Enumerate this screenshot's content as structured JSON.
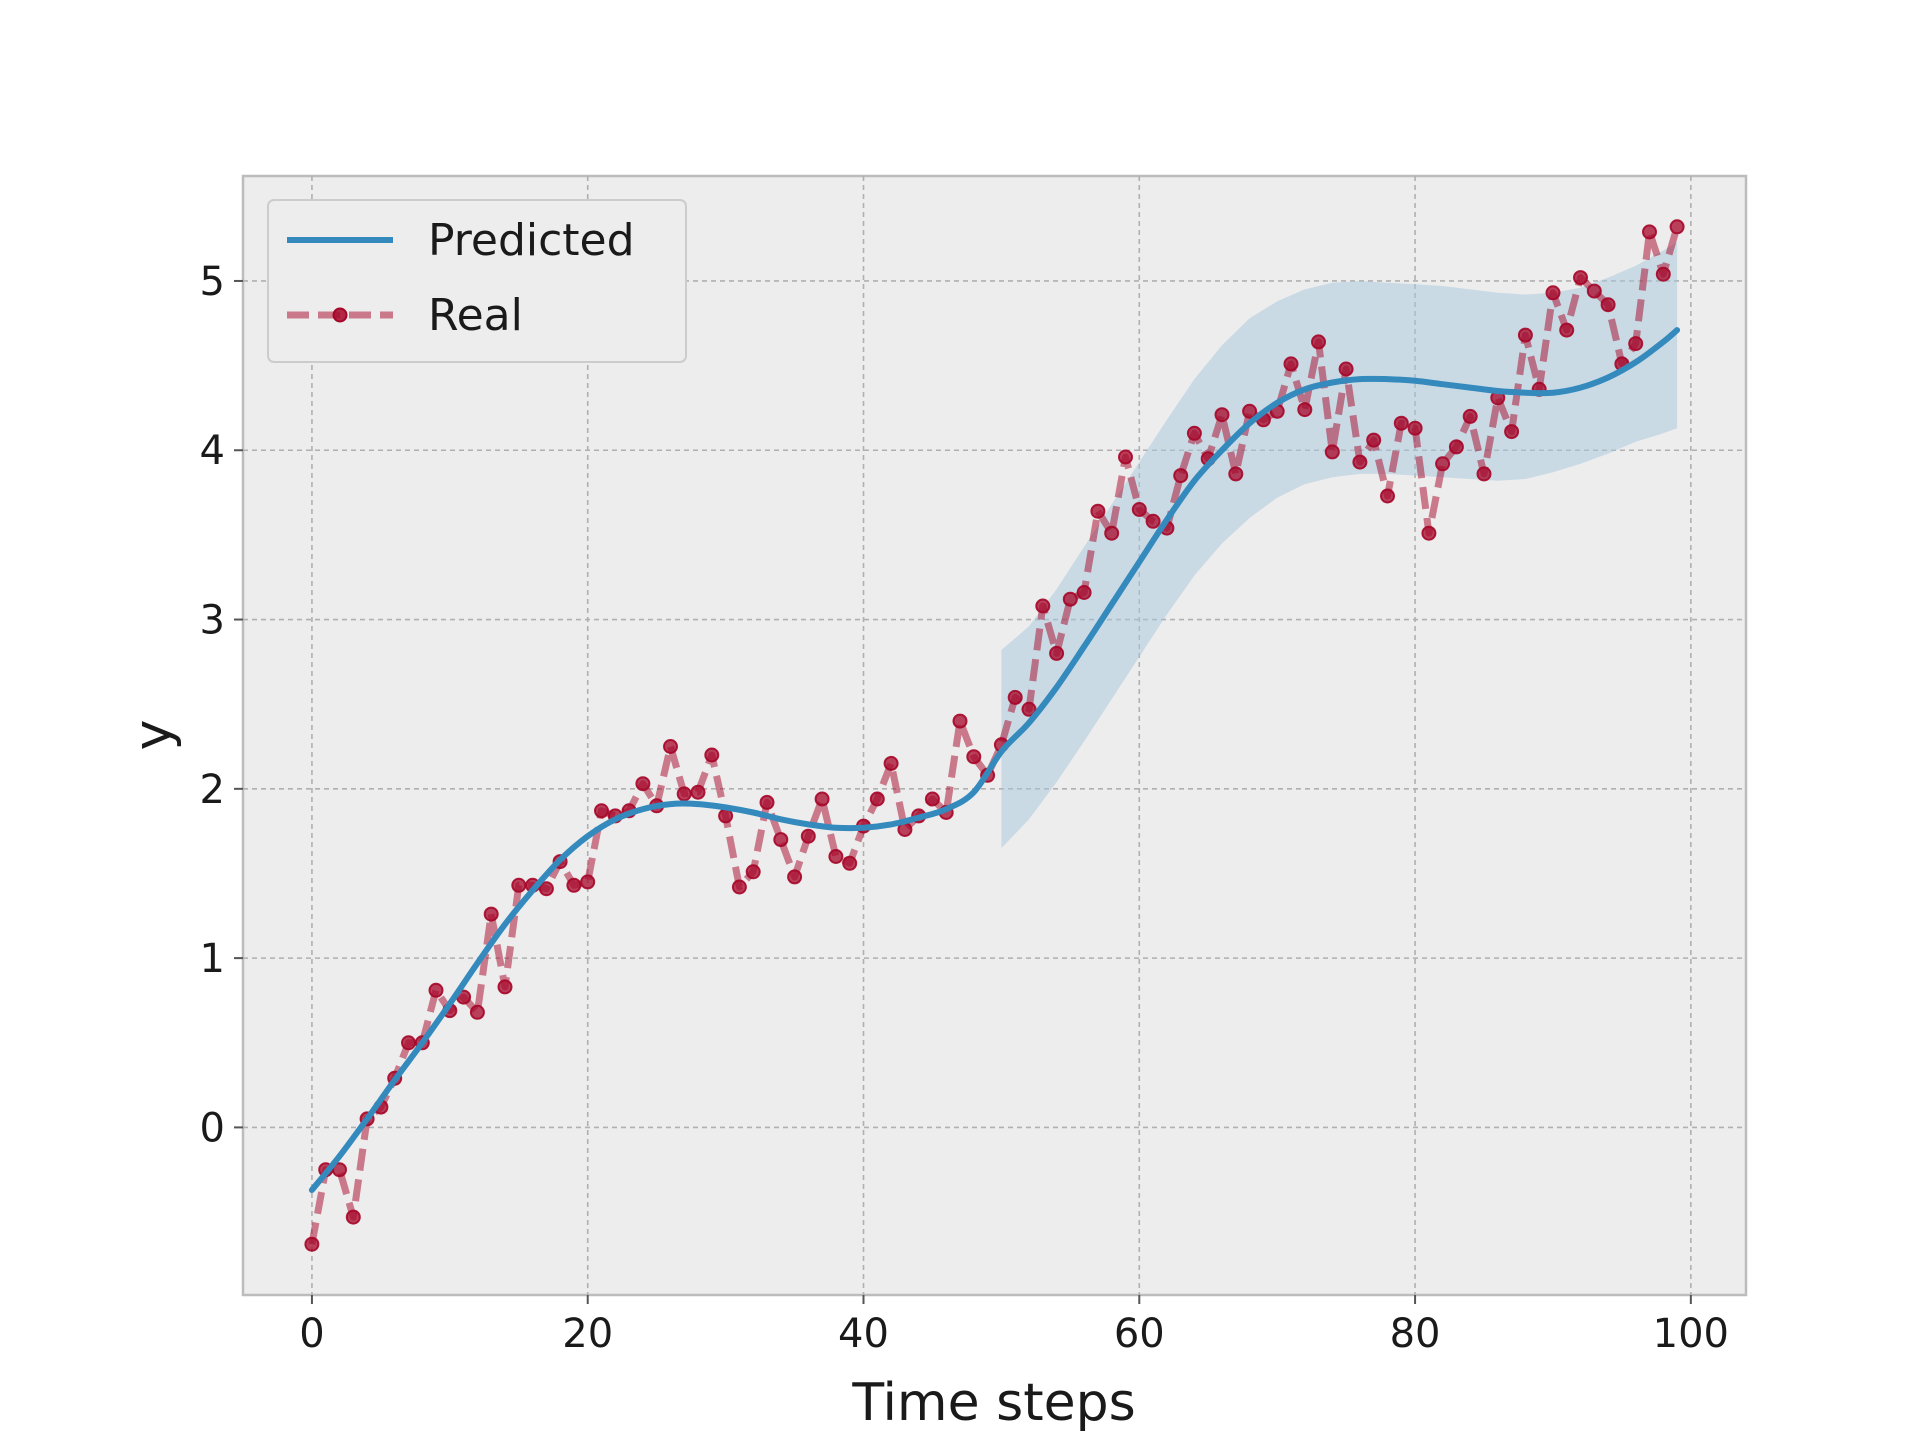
{
  "chart_data": {
    "type": "line",
    "title": "",
    "xlabel": "Time steps",
    "ylabel": "y",
    "xlim": [
      -5,
      104
    ],
    "ylim": [
      -0.99,
      5.62
    ],
    "xticks": [
      0,
      20,
      40,
      60,
      80,
      100
    ],
    "yticks": [
      0,
      1,
      2,
      3,
      4,
      5
    ],
    "grid": true,
    "legend_position": "top-left",
    "legend": [
      {
        "name": "Predicted",
        "style": "solid line"
      },
      {
        "name": "Real",
        "style": "dashed line with circle markers"
      }
    ],
    "series": [
      {
        "name": "Predicted",
        "color": "#348abd",
        "x": [
          0,
          2,
          4,
          6,
          8,
          10,
          12,
          14,
          16,
          18,
          20,
          22,
          24,
          26,
          28,
          30,
          32,
          34,
          36,
          38,
          40,
          42,
          44,
          46,
          48,
          50,
          52,
          54,
          56,
          58,
          60,
          62,
          64,
          66,
          68,
          70,
          72,
          74,
          76,
          78,
          80,
          82,
          84,
          86,
          88,
          90,
          92,
          94,
          96,
          98,
          99
        ],
        "y": [
          -0.37,
          -0.17,
          0.05,
          0.28,
          0.5,
          0.73,
          0.97,
          1.2,
          1.4,
          1.58,
          1.72,
          1.82,
          1.88,
          1.91,
          1.91,
          1.89,
          1.86,
          1.82,
          1.79,
          1.77,
          1.77,
          1.79,
          1.83,
          1.88,
          1.98,
          2.22,
          2.39,
          2.6,
          2.84,
          3.09,
          3.34,
          3.59,
          3.82,
          4.0,
          4.16,
          4.28,
          4.36,
          4.4,
          4.42,
          4.42,
          4.41,
          4.39,
          4.37,
          4.35,
          4.34,
          4.34,
          4.37,
          4.43,
          4.52,
          4.64,
          4.71
        ]
      },
      {
        "name": "Real",
        "color": "#a60628",
        "x": [
          0,
          1,
          2,
          3,
          4,
          5,
          6,
          7,
          8,
          9,
          10,
          11,
          12,
          13,
          14,
          15,
          16,
          17,
          18,
          19,
          20,
          21,
          22,
          23,
          24,
          25,
          26,
          27,
          28,
          29,
          30,
          31,
          32,
          33,
          34,
          35,
          36,
          37,
          38,
          39,
          40,
          41,
          42,
          43,
          44,
          45,
          46,
          47,
          48,
          49,
          50,
          51,
          52,
          53,
          54,
          55,
          56,
          57,
          58,
          59,
          60,
          61,
          62,
          63,
          64,
          65,
          66,
          67,
          68,
          69,
          70,
          71,
          72,
          73,
          74,
          75,
          76,
          77,
          78,
          79,
          80,
          81,
          82,
          83,
          84,
          85,
          86,
          87,
          88,
          89,
          90,
          91,
          92,
          93,
          94,
          95,
          96,
          97,
          98,
          99
        ],
        "y": [
          -0.69,
          -0.25,
          -0.25,
          -0.53,
          0.05,
          0.12,
          0.29,
          0.5,
          0.5,
          0.81,
          0.69,
          0.77,
          0.68,
          1.26,
          0.83,
          1.43,
          1.43,
          1.41,
          1.57,
          1.43,
          1.45,
          1.87,
          1.84,
          1.87,
          2.03,
          1.9,
          2.25,
          1.97,
          1.98,
          2.2,
          1.84,
          1.42,
          1.51,
          1.92,
          1.7,
          1.48,
          1.72,
          1.94,
          1.6,
          1.56,
          1.78,
          1.94,
          2.15,
          1.76,
          1.84,
          1.94,
          1.86,
          2.4,
          2.19,
          2.08,
          2.26,
          2.54,
          2.47,
          3.08,
          2.8,
          3.12,
          3.16,
          3.64,
          3.51,
          3.96,
          3.65,
          3.58,
          3.54,
          3.85,
          4.1,
          3.95,
          4.21,
          3.86,
          4.23,
          4.18,
          4.23,
          4.51,
          4.24,
          4.64,
          3.99,
          4.48,
          3.93,
          4.06,
          3.73,
          4.16,
          4.13,
          3.51,
          3.92,
          4.02,
          4.2,
          3.86,
          4.31,
          4.11,
          4.68,
          4.36,
          4.93,
          4.71,
          5.02,
          4.94,
          4.86,
          4.51,
          4.63,
          5.29,
          5.04,
          5.32
        ]
      }
    ],
    "confidence_band": {
      "color": "#a6c8dd",
      "x": [
        50,
        52,
        54,
        56,
        58,
        60,
        62,
        64,
        66,
        68,
        70,
        72,
        74,
        76,
        78,
        80,
        82,
        84,
        86,
        88,
        90,
        92,
        94,
        96,
        98,
        99
      ],
      "lower": [
        1.65,
        1.82,
        2.04,
        2.28,
        2.53,
        2.78,
        3.03,
        3.26,
        3.45,
        3.6,
        3.72,
        3.8,
        3.84,
        3.86,
        3.86,
        3.85,
        3.84,
        3.83,
        3.82,
        3.83,
        3.87,
        3.92,
        3.98,
        4.05,
        4.1,
        4.13
      ],
      "upper": [
        2.82,
        2.96,
        3.18,
        3.43,
        3.68,
        3.93,
        4.18,
        4.42,
        4.62,
        4.78,
        4.88,
        4.95,
        4.99,
        5.0,
        4.99,
        4.98,
        4.97,
        4.95,
        4.93,
        4.92,
        4.93,
        4.96,
        5.02,
        5.09,
        5.18,
        5.23
      ]
    }
  }
}
